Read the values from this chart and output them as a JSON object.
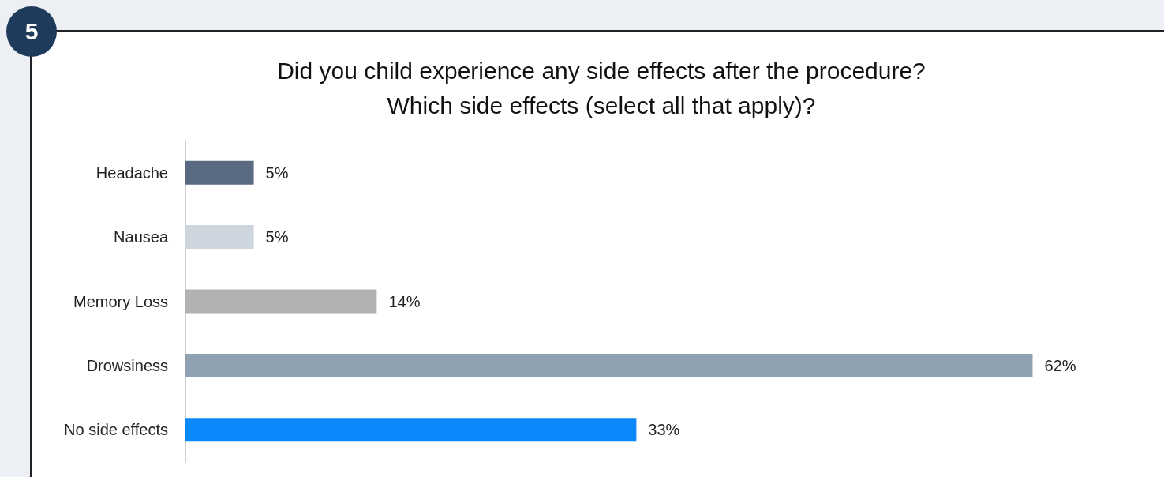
{
  "chart_data": {
    "type": "bar",
    "orientation": "horizontal",
    "title": "Did you child experience any side effects after the procedure?\nWhich side effects (select all that apply)?",
    "categories": [
      "Headache",
      "Nausea",
      "Memory Loss",
      "Drowsiness",
      "No side effects"
    ],
    "values": [
      5,
      5,
      14,
      62,
      33
    ],
    "colors": [
      "#596a82",
      "#cdd5de",
      "#b2b2b2",
      "#90a1b2",
      "#0b88fa"
    ],
    "value_labels": [
      "5%",
      "5%",
      "14%",
      "62%",
      "33%"
    ],
    "annotations": [
      "5"
    ]
  }
}
